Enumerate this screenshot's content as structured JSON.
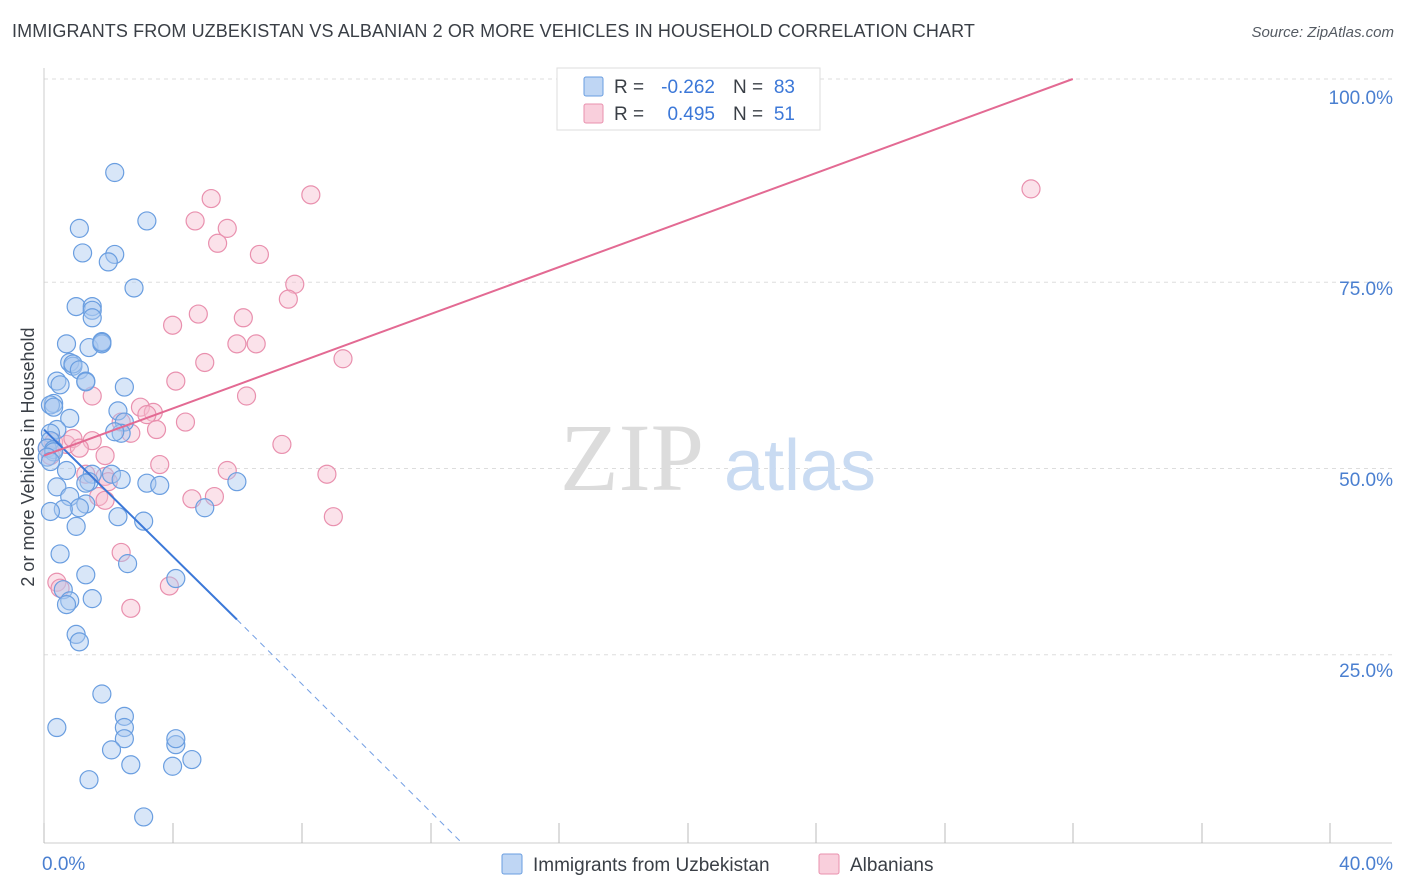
{
  "title": "IMMIGRANTS FROM UZBEKISTAN VS ALBANIAN 2 OR MORE VEHICLES IN HOUSEHOLD CORRELATION CHART",
  "source": "Source: ZipAtlas.com",
  "watermark": {
    "zip": "ZIP",
    "atlas": "atlas"
  },
  "colors": {
    "blue_fill": "#a9c8f0",
    "blue_stroke": "#6a9ee0",
    "blue_line": "#3b78d8",
    "pink_fill": "#f7bfd0",
    "pink_stroke": "#e990ae",
    "pink_line": "#e36a93",
    "grid": "#dddddd",
    "axis_text": "#4a7fd0"
  },
  "legend_top": [
    {
      "r_label": "R =",
      "r_value": "-0.262",
      "n_label": "N =",
      "n_value": "83"
    },
    {
      "r_label": "R =",
      "r_value": "0.495",
      "n_label": "N =",
      "n_value": "51"
    }
  ],
  "chart_data": {
    "type": "scatter",
    "title": "IMMIGRANTS FROM UZBEKISTAN VS ALBANIAN 2 OR MORE VEHICLES IN HOUSEHOLD CORRELATION CHART",
    "xlabel": "",
    "ylabel": "2 or more Vehicles in Household",
    "xlim": [
      0,
      40
    ],
    "ylim": [
      0,
      100
    ],
    "x_tick_labels": [
      "0.0%",
      "40.0%"
    ],
    "y_tick_labels": [
      "25.0%",
      "50.0%",
      "75.0%",
      "100.0%"
    ],
    "y_tick_values": [
      25,
      50,
      75,
      100
    ],
    "legend_position": "bottom-center",
    "series": [
      {
        "name": "Immigrants from Uzbekistan",
        "color": "blue",
        "trend": {
          "x0": 0,
          "y0": 55.5,
          "x1": 6.0,
          "y1": 30.0,
          "dash_x1": 13.0,
          "dash_y1": 0
        },
        "points": [
          [
            2.2,
            90.0
          ],
          [
            3.2,
            83.5
          ],
          [
            1.1,
            82.5
          ],
          [
            1.2,
            79.2
          ],
          [
            2.2,
            79.0
          ],
          [
            2.0,
            78.0
          ],
          [
            2.8,
            74.5
          ],
          [
            1.0,
            72.0
          ],
          [
            1.5,
            72.0
          ],
          [
            1.5,
            71.5
          ],
          [
            1.5,
            70.5
          ],
          [
            0.7,
            67.0
          ],
          [
            1.4,
            66.5
          ],
          [
            1.8,
            67.3
          ],
          [
            1.8,
            67.0
          ],
          [
            1.8,
            67.2
          ],
          [
            0.8,
            64.5
          ],
          [
            0.9,
            64.0
          ],
          [
            0.9,
            64.3
          ],
          [
            1.1,
            63.5
          ],
          [
            1.3,
            62.0
          ],
          [
            0.4,
            62.0
          ],
          [
            0.5,
            61.5
          ],
          [
            2.5,
            61.2
          ],
          [
            1.3,
            61.9
          ],
          [
            0.3,
            59.0
          ],
          [
            0.2,
            58.8
          ],
          [
            0.3,
            58.5
          ],
          [
            2.3,
            58.0
          ],
          [
            0.8,
            57.0
          ],
          [
            2.5,
            56.5
          ],
          [
            0.4,
            55.5
          ],
          [
            2.4,
            55.0
          ],
          [
            2.2,
            55.2
          ],
          [
            0.2,
            55.0
          ],
          [
            0.2,
            54.0
          ],
          [
            0.1,
            53.0
          ],
          [
            0.3,
            52.8
          ],
          [
            0.3,
            52.5
          ],
          [
            0.1,
            51.8
          ],
          [
            0.2,
            51.2
          ],
          [
            0.7,
            50.0
          ],
          [
            1.5,
            49.5
          ],
          [
            2.1,
            49.5
          ],
          [
            1.4,
            48.5
          ],
          [
            2.4,
            48.8
          ],
          [
            1.3,
            48.3
          ],
          [
            3.2,
            48.3
          ],
          [
            3.6,
            48.0
          ],
          [
            6.0,
            48.5
          ],
          [
            0.4,
            47.8
          ],
          [
            0.8,
            46.5
          ],
          [
            1.3,
            45.5
          ],
          [
            1.1,
            45.0
          ],
          [
            0.6,
            44.8
          ],
          [
            0.2,
            44.5
          ],
          [
            5.0,
            45.0
          ],
          [
            2.3,
            43.8
          ],
          [
            3.1,
            43.2
          ],
          [
            1.0,
            42.5
          ],
          [
            0.5,
            38.8
          ],
          [
            2.6,
            37.5
          ],
          [
            1.3,
            36.0
          ],
          [
            4.1,
            35.5
          ],
          [
            0.6,
            34.0
          ],
          [
            0.8,
            32.5
          ],
          [
            0.7,
            32.0
          ],
          [
            1.5,
            32.8
          ],
          [
            1.0,
            28.0
          ],
          [
            1.1,
            27.0
          ],
          [
            1.8,
            20.0
          ],
          [
            0.4,
            15.5
          ],
          [
            2.5,
            17.0
          ],
          [
            2.5,
            15.5
          ],
          [
            2.5,
            14.0
          ],
          [
            2.1,
            12.5
          ],
          [
            4.1,
            13.2
          ],
          [
            2.7,
            10.5
          ],
          [
            4.6,
            11.2
          ],
          [
            4.0,
            10.3
          ],
          [
            1.4,
            8.5
          ],
          [
            3.1,
            3.5
          ],
          [
            4.1,
            14.0
          ]
        ]
      },
      {
        "name": "Albanians",
        "color": "pink",
        "trend": {
          "x0": 0,
          "y0": 52.0,
          "x1": 32.0,
          "y1": 100.0
        },
        "points": [
          [
            5.2,
            86.5
          ],
          [
            8.3,
            87.0
          ],
          [
            30.7,
            87.8
          ],
          [
            4.7,
            83.5
          ],
          [
            5.7,
            82.5
          ],
          [
            5.4,
            80.5
          ],
          [
            6.7,
            79.0
          ],
          [
            7.8,
            75.0
          ],
          [
            7.6,
            73.0
          ],
          [
            4.8,
            71.0
          ],
          [
            6.2,
            70.5
          ],
          [
            4.0,
            69.5
          ],
          [
            6.0,
            67.0
          ],
          [
            6.6,
            67.0
          ],
          [
            9.3,
            65.0
          ],
          [
            5.0,
            64.5
          ],
          [
            4.1,
            62.0
          ],
          [
            1.5,
            60.0
          ],
          [
            6.3,
            60.0
          ],
          [
            3.0,
            58.5
          ],
          [
            3.4,
            57.8
          ],
          [
            3.2,
            57.5
          ],
          [
            2.4,
            56.5
          ],
          [
            4.4,
            56.5
          ],
          [
            3.5,
            55.5
          ],
          [
            2.7,
            55.0
          ],
          [
            1.5,
            54.0
          ],
          [
            0.3,
            53.8
          ],
          [
            0.7,
            53.5
          ],
          [
            0.9,
            54.3
          ],
          [
            0.1,
            53.0
          ],
          [
            1.1,
            53.0
          ],
          [
            0.2,
            52.0
          ],
          [
            1.9,
            52.0
          ],
          [
            3.6,
            50.8
          ],
          [
            7.4,
            53.5
          ],
          [
            5.7,
            50.0
          ],
          [
            8.8,
            49.5
          ],
          [
            1.3,
            49.5
          ],
          [
            1.9,
            49.2
          ],
          [
            2.0,
            48.5
          ],
          [
            1.7,
            46.5
          ],
          [
            5.3,
            46.5
          ],
          [
            4.6,
            46.2
          ],
          [
            1.9,
            46.0
          ],
          [
            9.0,
            43.8
          ],
          [
            2.4,
            39.0
          ],
          [
            3.9,
            34.5
          ],
          [
            0.4,
            35.0
          ],
          [
            0.5,
            34.2
          ],
          [
            2.7,
            31.5
          ]
        ]
      }
    ]
  }
}
